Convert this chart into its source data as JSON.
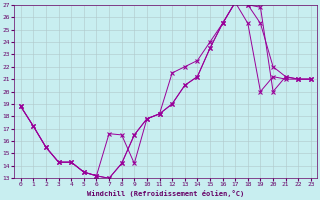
{
  "xlabel": "Windchill (Refroidissement éolien,°C)",
  "bg_color": "#c8eef0",
  "line_color": "#990099",
  "grid_color": "#b0c8ca",
  "xlim": [
    -0.5,
    23.5
  ],
  "ylim": [
    13,
    27
  ],
  "xticks": [
    0,
    1,
    2,
    3,
    4,
    5,
    6,
    7,
    8,
    9,
    10,
    11,
    12,
    13,
    14,
    15,
    16,
    17,
    18,
    19,
    20,
    21,
    22,
    23
  ],
  "yticks": [
    13,
    14,
    15,
    16,
    17,
    18,
    19,
    20,
    21,
    22,
    23,
    24,
    25,
    26,
    27
  ],
  "line1_x": [
    0,
    1,
    2,
    3,
    4,
    5,
    6,
    7,
    8,
    9,
    10,
    11,
    12,
    13,
    14,
    15,
    16,
    17,
    18,
    19,
    20,
    21,
    22,
    23
  ],
  "line1_y": [
    18.8,
    17.2,
    15.5,
    14.3,
    14.3,
    13.5,
    13.2,
    13.0,
    14.2,
    16.5,
    17.8,
    18.2,
    19.0,
    20.5,
    21.2,
    23.5,
    25.5,
    27.2,
    27.0,
    26.8,
    20.0,
    21.2,
    21.0,
    21.0
  ],
  "line2_x": [
    0,
    1,
    2,
    3,
    4,
    5,
    6,
    7,
    8,
    9,
    10,
    11,
    12,
    13,
    14,
    15,
    16,
    17,
    18,
    19,
    20,
    21,
    22,
    23
  ],
  "line2_y": [
    18.8,
    17.2,
    15.5,
    14.3,
    14.3,
    13.5,
    13.2,
    16.6,
    16.5,
    14.2,
    17.8,
    18.2,
    21.5,
    22.0,
    22.5,
    24.0,
    25.5,
    27.2,
    25.5,
    20.0,
    21.2,
    21.0,
    21.0,
    21.0
  ],
  "line3_x": [
    0,
    1,
    2,
    3,
    4,
    5,
    6,
    7,
    8,
    9,
    10,
    11,
    12,
    13,
    14,
    15,
    16,
    17,
    18,
    19,
    20,
    21,
    22,
    23
  ],
  "line3_y": [
    18.8,
    17.2,
    15.5,
    14.3,
    14.3,
    13.5,
    13.2,
    13.0,
    14.2,
    16.5,
    17.8,
    18.2,
    19.0,
    20.5,
    21.2,
    23.5,
    25.5,
    27.2,
    27.0,
    25.5,
    22.0,
    21.2,
    21.0,
    21.0
  ]
}
